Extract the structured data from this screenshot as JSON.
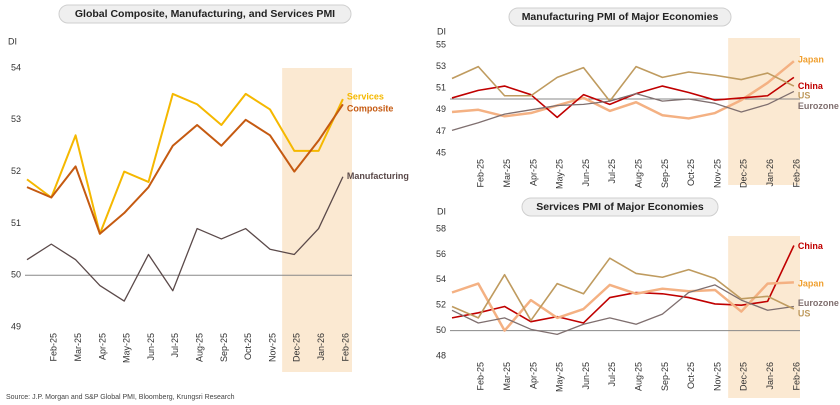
{
  "chart_data": [
    {
      "type": "line",
      "title": "Global Composite, Manufacturing, and Services PMI",
      "y_label": "DI",
      "categories": [
        null,
        "Feb-25",
        "Mar-25",
        "Apr-25",
        "May-25",
        "Jun-25",
        "Jul-25",
        "Aug-25",
        "Sep-25",
        "Oct-25",
        "Nov-25",
        "Dec-25",
        "Jan-26",
        "Feb-26"
      ],
      "ylim": [
        49,
        54
      ],
      "yticks": [
        49,
        50,
        51,
        52,
        53,
        54
      ],
      "reference_line": 50,
      "series": [
        {
          "name": "Services",
          "color": "#f5b800",
          "values": [
            51.85,
            51.5,
            52.7,
            50.8,
            52.0,
            51.8,
            53.5,
            53.3,
            52.9,
            53.5,
            53.2,
            52.4,
            52.4,
            53.4
          ]
        },
        {
          "name": "Composite",
          "color": "#c55a11",
          "values": [
            51.7,
            51.5,
            52.1,
            50.8,
            51.2,
            51.7,
            52.5,
            52.9,
            52.5,
            53.0,
            52.7,
            52.0,
            52.6,
            53.3
          ]
        },
        {
          "name": "Manufacturing",
          "color": "#5b4a4a",
          "values": [
            50.3,
            50.6,
            50.3,
            49.8,
            49.5,
            50.4,
            49.7,
            50.9,
            50.7,
            50.9,
            50.5,
            50.4,
            50.9,
            51.9
          ]
        }
      ]
    },
    {
      "type": "line",
      "title": "Manufacturing PMI of Major Economies",
      "y_label": "DI",
      "categories": [
        null,
        "Feb-25",
        "Mar-25",
        "Apr-25",
        "May-25",
        "Jun-25",
        "Jul-25",
        "Aug-25",
        "Sep-25",
        "Oct-25",
        "Nov-25",
        "Dec-25",
        "Jan-26",
        "Feb-26"
      ],
      "ylim": [
        45,
        55
      ],
      "yticks": [
        45,
        47,
        49,
        51,
        53,
        55
      ],
      "reference_line": 50,
      "series": [
        {
          "name": "Japan",
          "color": "#f4b183",
          "label_color": "#f0a030",
          "values": [
            48.8,
            49.0,
            48.4,
            48.7,
            49.4,
            50.1,
            48.9,
            49.7,
            48.5,
            48.2,
            48.7,
            49.9,
            51.5,
            53.5
          ]
        },
        {
          "name": "China",
          "color": "#c00000",
          "values": [
            50.1,
            50.8,
            51.2,
            50.4,
            48.3,
            50.4,
            49.5,
            50.5,
            51.2,
            50.6,
            49.9,
            50.1,
            50.3,
            52.0
          ]
        },
        {
          "name": "US",
          "color": "#bf9b5f",
          "values": [
            51.9,
            53.0,
            50.3,
            50.3,
            52.0,
            52.9,
            49.8,
            53.0,
            52.0,
            52.5,
            52.2,
            51.8,
            52.4,
            51.2
          ]
        },
        {
          "name": "Eurozone",
          "color": "#7f6f6f",
          "values": [
            47.1,
            47.8,
            48.6,
            49.0,
            49.4,
            49.5,
            49.8,
            50.5,
            49.8,
            50.0,
            49.6,
            48.8,
            49.5,
            50.7
          ]
        }
      ]
    },
    {
      "type": "line",
      "title": "Services PMI of Major Economies",
      "y_label": "DI",
      "categories": [
        null,
        "Feb-25",
        "Mar-25",
        "Apr-25",
        "May-25",
        "Jun-25",
        "Jul-25",
        "Aug-25",
        "Sep-25",
        "Oct-25",
        "Nov-25",
        "Dec-25",
        "Jan-26",
        "Feb-26"
      ],
      "ylim": [
        48,
        58
      ],
      "yticks": [
        48,
        50,
        52,
        54,
        56,
        58
      ],
      "reference_line": 50,
      "series": [
        {
          "name": "China",
          "color": "#c00000",
          "values": [
            51.0,
            51.4,
            51.9,
            50.7,
            51.1,
            50.6,
            52.6,
            53.0,
            52.9,
            52.6,
            52.1,
            52.0,
            52.3,
            56.7
          ]
        },
        {
          "name": "Japan",
          "color": "#f4b183",
          "label_color": "#f0a030",
          "values": [
            53.0,
            53.7,
            50.0,
            52.4,
            51.0,
            51.7,
            53.6,
            52.9,
            53.3,
            53.1,
            53.2,
            51.5,
            53.7,
            53.8
          ]
        },
        {
          "name": "Eurozone",
          "color": "#7f6f6f",
          "values": [
            51.6,
            50.6,
            51.0,
            50.1,
            49.7,
            50.5,
            51.0,
            50.5,
            51.3,
            53.0,
            53.6,
            52.4,
            51.6,
            51.9
          ]
        },
        {
          "name": "US",
          "color": "#bf9b5f",
          "values": [
            51.9,
            51.0,
            54.4,
            50.8,
            53.7,
            52.9,
            55.7,
            54.5,
            54.2,
            54.8,
            54.1,
            52.5,
            52.7,
            51.7
          ]
        }
      ]
    }
  ],
  "source": "Source: J.P. Morgan and S&P Global PMI, Bloomberg, Krungsri Research"
}
